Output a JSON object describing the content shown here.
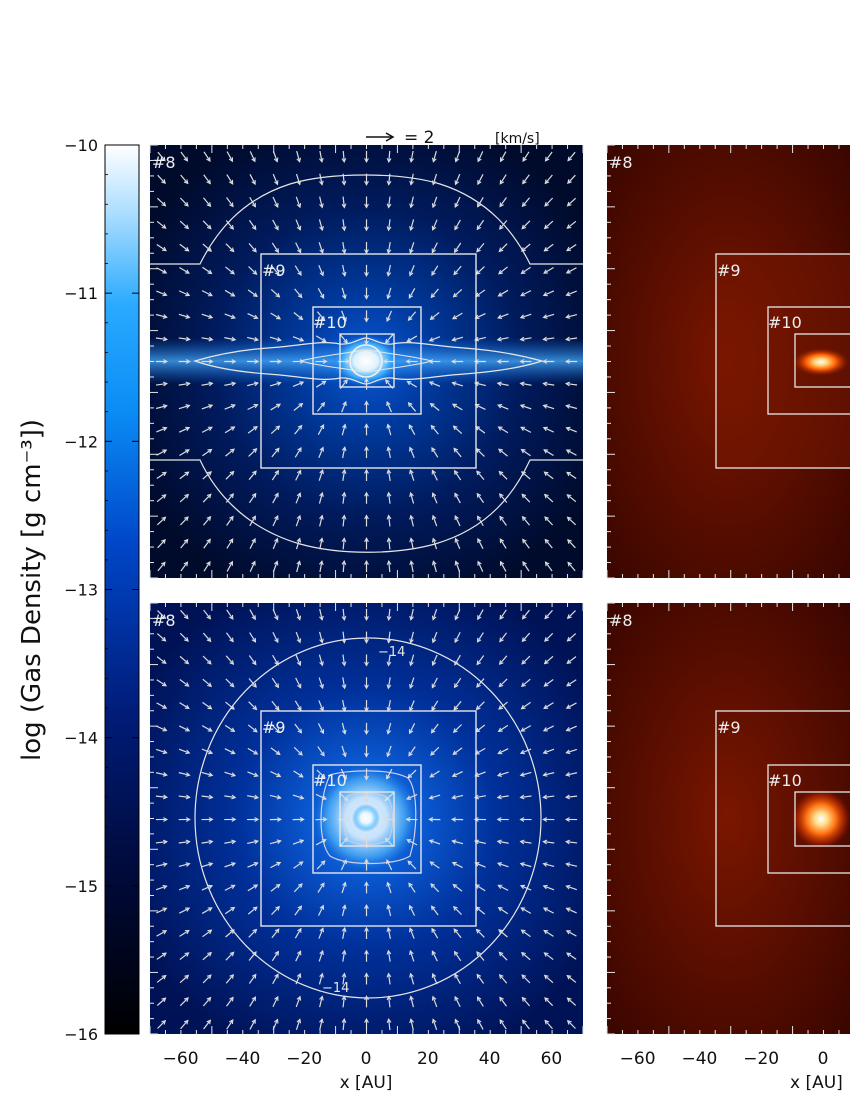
{
  "colorbar": {
    "label": "log (Gas Density [g cm⁻³])",
    "ticks": [
      "−10",
      "−11",
      "−12",
      "−13",
      "−14",
      "−15",
      "−16"
    ]
  },
  "velocity_key": {
    "value": "= 2",
    "unit": "[km/s]"
  },
  "panels": {
    "top_left": {
      "levels": [
        "#8",
        "#9",
        "#10"
      ]
    },
    "top_right": {
      "levels": [
        "#8",
        "#9",
        "#10"
      ]
    },
    "bottom_left": {
      "levels": [
        "#8",
        "#9",
        "#10"
      ],
      "contour_labels": [
        "−14",
        "−14"
      ]
    },
    "bottom_right": {
      "levels": [
        "#8",
        "#9",
        "#10"
      ]
    }
  },
  "x_axis": {
    "ticks": [
      "−60",
      "−40",
      "−20",
      "0",
      "20",
      "40",
      "60"
    ],
    "label": "x [AU]",
    "right_ticks": [
      "−60",
      "−40",
      "−20",
      "0"
    ],
    "right_label": "x [AU]"
  },
  "colors": {
    "blue_map": [
      "#000000",
      "#000a3a",
      "#002a9c",
      "#0a62e0",
      "#18a8ff",
      "#c8ecff",
      "#ffffff"
    ],
    "red_map": [
      "#3a0600",
      "#6a1200",
      "#c03000",
      "#ff7a10",
      "#ffffff"
    ],
    "overlay": "#e8e8e8"
  }
}
